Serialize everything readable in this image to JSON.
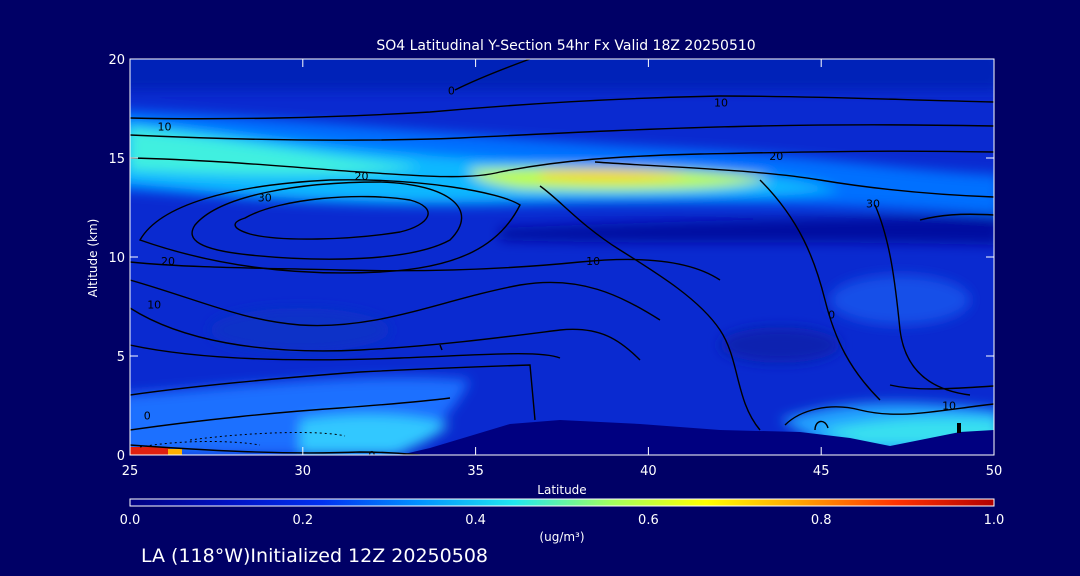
{
  "chart_data": {
    "type": "heatmap",
    "title": "SO4 Latitudinal Y-Section 54hr  Fx Valid 18Z 20250510",
    "xlabel": "Latitude",
    "ylabel": "Altitude (km)",
    "xlim": [
      25,
      50
    ],
    "ylim": [
      0,
      20
    ],
    "x_ticks": [
      "25",
      "30",
      "35",
      "40",
      "45",
      "50"
    ],
    "y_ticks": [
      "0",
      "5",
      "10",
      "15",
      "20"
    ],
    "colorbar": {
      "unit": "(ug/m³)",
      "ticks": [
        "0.0",
        "0.2",
        "0.4",
        "0.6",
        "0.8",
        "1.0"
      ],
      "range": [
        0,
        1
      ],
      "colors": [
        "#000080",
        "#0010c0",
        "#0030f0",
        "#0090ff",
        "#20e8f0",
        "#a0ff60",
        "#ffff00",
        "#ffa000",
        "#ff3000",
        "#b00000"
      ]
    },
    "contour_labels": [
      {
        "text": "0",
        "lat": 34.3,
        "alt": 18.4
      },
      {
        "text": "10",
        "lat": 26.0,
        "alt": 16.6
      },
      {
        "text": "10",
        "lat": 42.1,
        "alt": 17.8
      },
      {
        "text": "20",
        "lat": 31.7,
        "alt": 14.1
      },
      {
        "text": "20",
        "lat": 43.7,
        "alt": 15.1
      },
      {
        "text": "30",
        "lat": 28.9,
        "alt": 13.0
      },
      {
        "text": "30",
        "lat": 46.5,
        "alt": 12.7
      },
      {
        "text": "20",
        "lat": 26.1,
        "alt": 9.8
      },
      {
        "text": "10",
        "lat": 38.4,
        "alt": 9.8
      },
      {
        "text": "10",
        "lat": 25.7,
        "alt": 7.6
      },
      {
        "text": "0",
        "lat": 45.3,
        "alt": 7.1
      },
      {
        "text": "0",
        "lat": 25.5,
        "alt": 2.0
      },
      {
        "text": "10",
        "lat": 48.7,
        "alt": 2.5
      },
      {
        "text": "0",
        "lat": 32.0,
        "alt": 0.0
      }
    ]
  },
  "footer": {
    "location_text": "LA (118°W)Initialized 12Z 20250508"
  }
}
